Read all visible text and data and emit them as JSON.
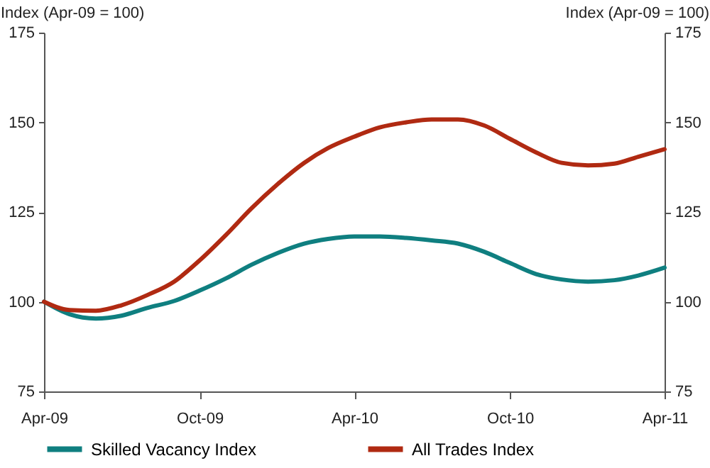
{
  "chart_data": {
    "type": "line",
    "ylabel": "Index (Apr-09 = 100)",
    "y2label": "Index (Apr-09 = 100)",
    "x": [
      "2009-04",
      "2009-05",
      "2009-06",
      "2009-07",
      "2009-08",
      "2009-09",
      "2009-10",
      "2009-11",
      "2009-12",
      "2010-01",
      "2010-02",
      "2010-03",
      "2010-04",
      "2010-05",
      "2010-06",
      "2010-07",
      "2010-08",
      "2010-09",
      "2010-10",
      "2010-11",
      "2010-12",
      "2011-01",
      "2011-02",
      "2011-03",
      "2011-04"
    ],
    "series": [
      {
        "name": "Skilled Vacancy Index",
        "color": "#0f7f80",
        "values": [
          100,
          96.5,
          95.3,
          96.1,
          98.3,
          100.2,
          103.1,
          106.5,
          110.3,
          113.6,
          116.2,
          117.5,
          118.2,
          118.2,
          117.8,
          117.1,
          116.2,
          113.9,
          110.8,
          107.7,
          106.2,
          105.6,
          106,
          107.3,
          109.5
        ]
      },
      {
        "name": "All Trades Index",
        "color": "#b02a12",
        "values": [
          100,
          97.7,
          97.5,
          99,
          101.9,
          105.6,
          111.5,
          118.6,
          126,
          132.8,
          138.7,
          142.8,
          146,
          148.6,
          150,
          150.8,
          150.8,
          149.1,
          145.4,
          141.6,
          138.7,
          138,
          138.5,
          140.4,
          142.5
        ]
      }
    ],
    "xlim": [
      "2009-04",
      "2011-04"
    ],
    "xticks": [
      {
        "value": "2009-04",
        "label": "Apr-09"
      },
      {
        "value": "2009-10",
        "label": "Oct-09"
      },
      {
        "value": "2010-04",
        "label": "Apr-10"
      },
      {
        "value": "2010-10",
        "label": "Oct-10"
      },
      {
        "value": "2011-04",
        "label": "Apr-11"
      }
    ],
    "ylim": [
      75,
      175
    ],
    "yticks": [
      75,
      100,
      125,
      150,
      175
    ],
    "y2lim": [
      75,
      175
    ],
    "y2ticks": [
      75,
      100,
      125,
      150,
      175
    ],
    "grid": false,
    "legend": "bottom",
    "marker": "none",
    "line_style": "solid"
  }
}
